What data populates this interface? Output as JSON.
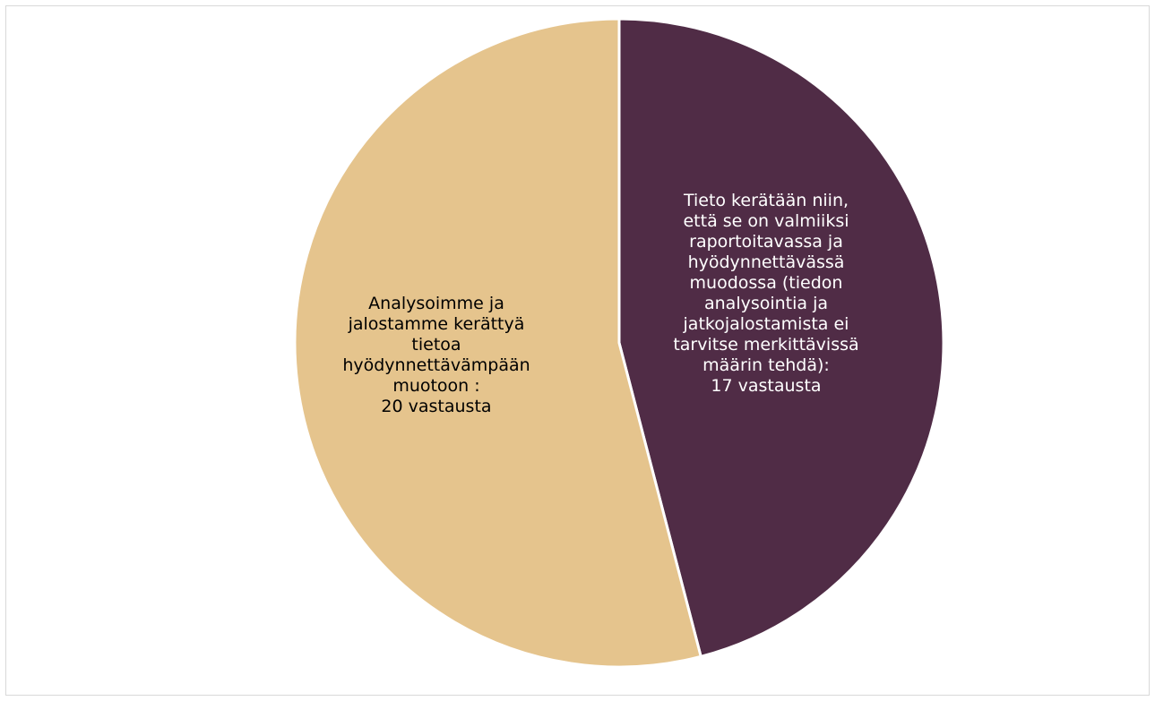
{
  "chart_data": {
    "type": "pie",
    "title": "",
    "slices": [
      {
        "label": "Tieto kerätään niin, että se on valmiiksi raportoitavassa ja hyödynnettävässä muodossa (tiedon analysointia ja jatkojalostamista ei tarvitse merkittävissä määrin tehdä):",
        "value": 17,
        "value_label": "17 vastausta",
        "display_lines": [
          "Tieto kerätään niin,",
          "että se on valmiiksi",
          "raportoitavassa ja",
          "hyödynnettävässä",
          "muodossa (tiedon",
          "analysointia ja",
          "jatkojalostamista ei",
          "tarvitse merkittävissä",
          "määrin tehdä):",
          "17 vastausta"
        ],
        "color": "#502c46",
        "text_color": "#ffffff"
      },
      {
        "label": "Analysoimme ja jalostamme kerättyä tietoa hyödynnettävämpään muotoon :",
        "value": 20,
        "value_label": "20 vastausta",
        "display_lines": [
          "Analysoimme ja",
          "jalostamme kerättyä",
          "tietoa",
          "hyödynnettävämpään",
          "muotoon :",
          "20 vastausta"
        ],
        "color": "#e5c48d",
        "text_color": "#000000"
      }
    ],
    "start_angle": "12 o'clock",
    "direction": "clockwise",
    "legend": "none",
    "slice_border_color": "#ffffff"
  }
}
